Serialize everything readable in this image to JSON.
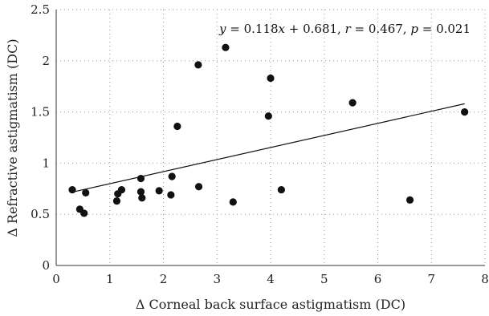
{
  "chart_data": {
    "type": "scatter",
    "xlabel": "Δ Corneal back surface astigmatism (DC)",
    "ylabel": "Δ Refractive astigmatism (DC)",
    "xlim": [
      0,
      8
    ],
    "ylim": [
      0,
      2.5
    ],
    "xticks": [
      "0",
      "1",
      "2",
      "3",
      "4",
      "5",
      "6",
      "7",
      "8"
    ],
    "yticks": [
      "0",
      "0.5",
      "1",
      "1.5",
      "2",
      "2.5"
    ],
    "grid": "dotted",
    "points": [
      {
        "x": 0.3,
        "y": 0.74
      },
      {
        "x": 0.44,
        "y": 0.55
      },
      {
        "x": 0.52,
        "y": 0.51
      },
      {
        "x": 0.55,
        "y": 0.71
      },
      {
        "x": 1.13,
        "y": 0.63
      },
      {
        "x": 1.15,
        "y": 0.7
      },
      {
        "x": 1.22,
        "y": 0.74
      },
      {
        "x": 1.58,
        "y": 0.85
      },
      {
        "x": 1.58,
        "y": 0.72
      },
      {
        "x": 1.6,
        "y": 0.66
      },
      {
        "x": 1.92,
        "y": 0.73
      },
      {
        "x": 2.14,
        "y": 0.69
      },
      {
        "x": 2.16,
        "y": 0.87
      },
      {
        "x": 2.26,
        "y": 1.36
      },
      {
        "x": 2.65,
        "y": 1.96
      },
      {
        "x": 2.66,
        "y": 0.77
      },
      {
        "x": 3.16,
        "y": 2.13
      },
      {
        "x": 3.3,
        "y": 0.62
      },
      {
        "x": 3.96,
        "y": 1.46
      },
      {
        "x": 4.0,
        "y": 1.83
      },
      {
        "x": 4.2,
        "y": 0.74
      },
      {
        "x": 5.53,
        "y": 1.59
      },
      {
        "x": 6.6,
        "y": 0.64
      },
      {
        "x": 7.62,
        "y": 1.5
      }
    ],
    "fit_line": {
      "slope": 0.118,
      "intercept": 0.681,
      "x_range": [
        0.3,
        7.62
      ]
    },
    "annotation": {
      "y_var": "y",
      "eq_mid": " = 0.118",
      "x_var": "x",
      "eq_tail": " + 0.681, ",
      "r_var": "r",
      "r_val": " = 0.467, ",
      "p_var": "p",
      "p_val": " = 0.021"
    },
    "marker_color": "#111111",
    "line_color": "#111111"
  }
}
